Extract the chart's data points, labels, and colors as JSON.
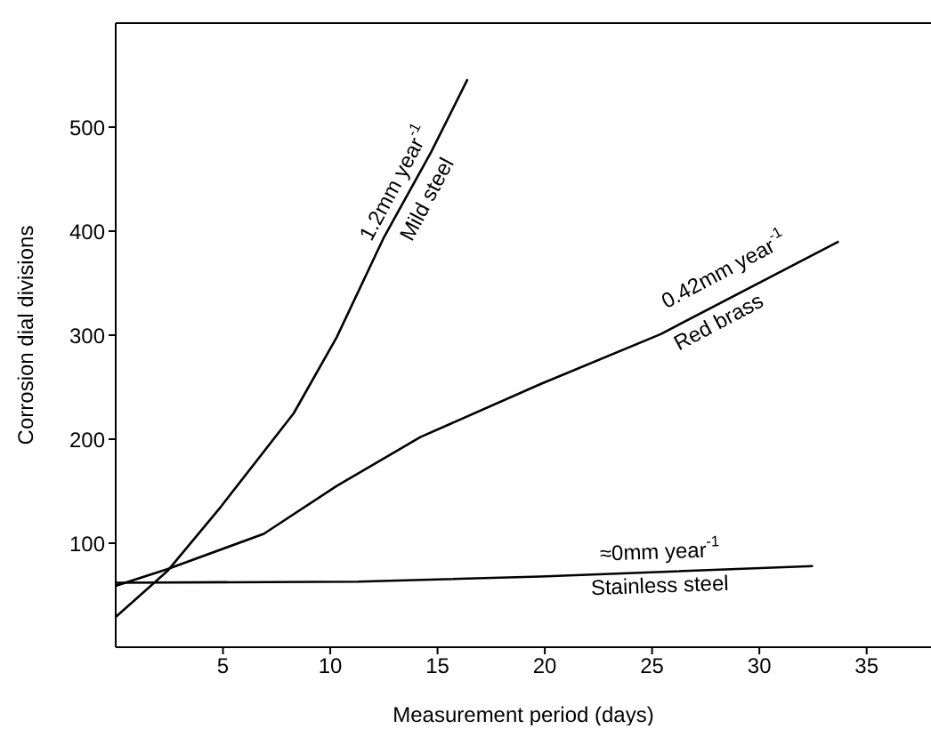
{
  "chart_data": {
    "type": "line",
    "xlabel": "Measurement period (days)",
    "ylabel": "Corrosion dial divisions",
    "xlim": [
      0,
      38
    ],
    "xticks": [
      5,
      10,
      15,
      20,
      25,
      30,
      35
    ],
    "ylim": [
      0,
      600
    ],
    "yticks": [
      100,
      200,
      300,
      400,
      500
    ],
    "grid": false,
    "legend": false,
    "marker": "none",
    "line_style": "solid",
    "series": [
      {
        "name": "Mild steel",
        "color": "#000000",
        "x": [
          0,
          2.4,
          4.9,
          8.3,
          10.3,
          12.5,
          14.7,
          16.4
        ],
        "values": [
          29,
          73,
          135,
          225,
          298,
          394,
          476,
          546
        ]
      },
      {
        "name": "Red brass",
        "color": "#000000",
        "x": [
          0,
          2.4,
          6.9,
          10.3,
          14.2,
          19.8,
          25.4,
          33.7
        ],
        "values": [
          59,
          75,
          109,
          155,
          202,
          253,
          301,
          390
        ]
      },
      {
        "name": "Stainless steel",
        "color": "#000000",
        "x": [
          0,
          11.3,
          19.8,
          32.5
        ],
        "values": [
          62,
          63,
          68,
          78
        ]
      }
    ],
    "annotations": [
      "1.2mm year$^{-1}$",
      "0.42mm year$^{-1}$",
      "≈0mm year$^{-1}$"
    ]
  }
}
